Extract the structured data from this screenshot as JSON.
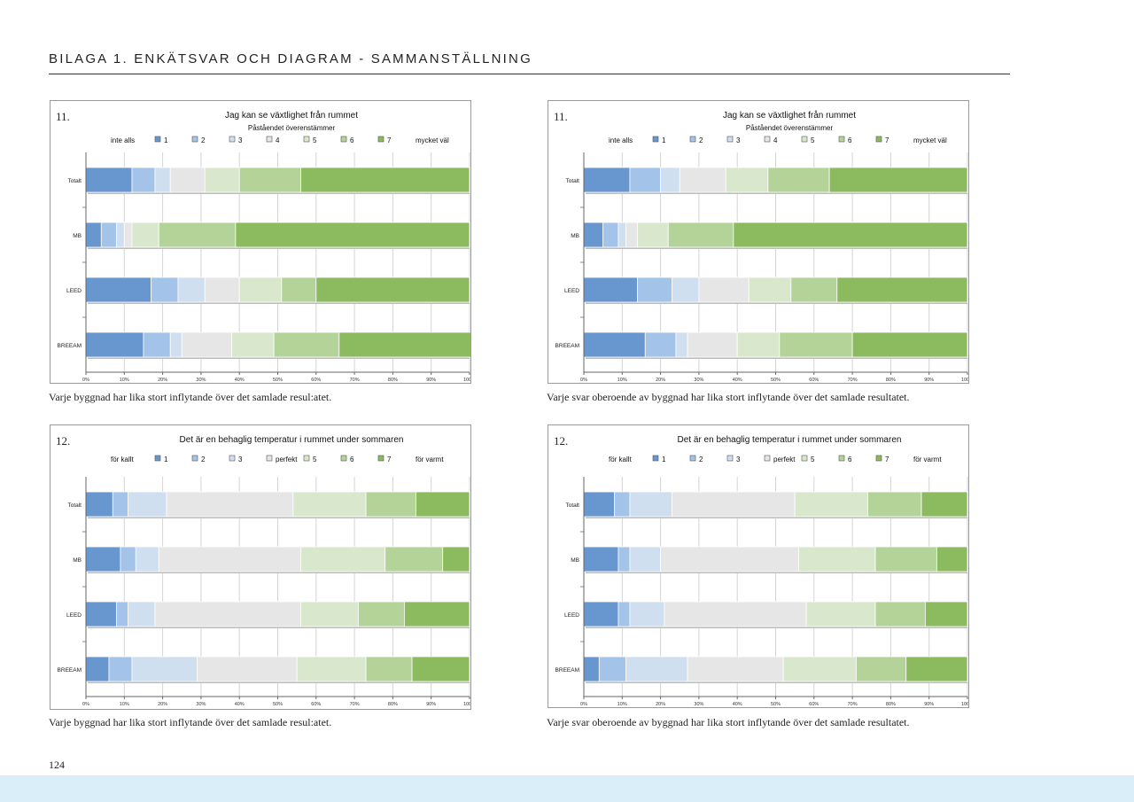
{
  "page": {
    "title": "BILAGA 1. ENKÄTSVAR OCH DIAGRAM - SAMMANSTÄLLNING",
    "page_number": "124"
  },
  "colors": {
    "seg": [
      "#6897d0",
      "#a3c3e9",
      "#cfdff0",
      "#e6e6e6",
      "#d9e8cc",
      "#b3d398",
      "#8cbb5f"
    ]
  },
  "captions": {
    "weighted": "Varje byggnad har lika stort inflytande över det samlade resul:atet.",
    "unweighted": "Varje svar oberoende av byggnad har lika stort inflytande över det samlade resultatet."
  },
  "chart_data": [
    {
      "type": "bar",
      "number": "11.",
      "title": "Jag kan se växtlighet från rummet",
      "subtitle": "Påståendet överenstämmer",
      "legend_left": "inte alls",
      "legend_right": "mycket väl",
      "legend": [
        "1",
        "2",
        "3",
        "4",
        "5",
        "6",
        "7"
      ],
      "categories": [
        "Totalt",
        "MB",
        "LEED",
        "BREEAM"
      ],
      "xlim": [
        0,
        100
      ],
      "x_ticks": [
        "0%",
        "10%",
        "20%",
        "30%",
        "40%",
        "50%",
        "60%",
        "70%",
        "80%",
        "90%",
        "100%"
      ],
      "values": [
        [
          12,
          6,
          4,
          9,
          9,
          16,
          44
        ],
        [
          4,
          4,
          2,
          2,
          7,
          20,
          61
        ],
        [
          17,
          7,
          7,
          9,
          11,
          9,
          40
        ],
        [
          15,
          7,
          3,
          13,
          11,
          17,
          35
        ]
      ]
    },
    {
      "type": "bar",
      "number": "11.",
      "title": "Jag kan se växtlighet från rummet",
      "subtitle": "Påståendet överenstämmer",
      "legend_left": "inte alls",
      "legend_right": "mycket väl",
      "legend": [
        "1",
        "2",
        "3",
        "4",
        "5",
        "6",
        "7"
      ],
      "categories": [
        "Totalt",
        "MB",
        "LEED",
        "BREEAM"
      ],
      "xlim": [
        0,
        100
      ],
      "x_ticks": [
        "0%",
        "10%",
        "20%",
        "30%",
        "40%",
        "50%",
        "60%",
        "70%",
        "80%",
        "90%",
        "100%"
      ],
      "values": [
        [
          12,
          8,
          5,
          12,
          11,
          16,
          36
        ],
        [
          5,
          4,
          2,
          3,
          8,
          17,
          61
        ],
        [
          14,
          9,
          7,
          13,
          11,
          12,
          34
        ],
        [
          16,
          8,
          3,
          13,
          11,
          19,
          30
        ]
      ]
    },
    {
      "type": "bar",
      "number": "12.",
      "title": "Det är en behaglig temperatur i rummet under sommaren",
      "subtitle": "",
      "legend_left": "för kallt",
      "legend_right": "för varmt",
      "legend": [
        "1",
        "2",
        "3",
        "perfekt",
        "5",
        "6",
        "7"
      ],
      "categories": [
        "Totalt",
        "MB",
        "LEED",
        "BREEAM"
      ],
      "xlim": [
        0,
        100
      ],
      "x_ticks": [
        "0%",
        "10%",
        "20%",
        "30%",
        "40%",
        "50%",
        "60%",
        "70%",
        "80%",
        "90%",
        "100%"
      ],
      "values": [
        [
          7,
          4,
          10,
          33,
          19,
          13,
          14
        ],
        [
          9,
          4,
          6,
          37,
          22,
          15,
          7
        ],
        [
          8,
          3,
          7,
          38,
          15,
          12,
          17
        ],
        [
          6,
          6,
          17,
          26,
          18,
          12,
          15
        ]
      ]
    },
    {
      "type": "bar",
      "number": "12.",
      "title": "Det är en behaglig temperatur i rummet under sommaren",
      "subtitle": "",
      "legend_left": "för kallt",
      "legend_right": "för varmt",
      "legend": [
        "1",
        "2",
        "3",
        "perfekt",
        "5",
        "6",
        "7"
      ],
      "categories": [
        "Totalt",
        "MB",
        "LEED",
        "BREEAM"
      ],
      "xlim": [
        0,
        100
      ],
      "x_ticks": [
        "0%",
        "10%",
        "20%",
        "30%",
        "40%",
        "50%",
        "60%",
        "70%",
        "80%",
        "90%",
        "100%"
      ],
      "values": [
        [
          8,
          4,
          11,
          32,
          19,
          14,
          12
        ],
        [
          9,
          3,
          8,
          36,
          20,
          16,
          8
        ],
        [
          9,
          3,
          9,
          37,
          18,
          13,
          11
        ],
        [
          4,
          7,
          16,
          25,
          19,
          13,
          16
        ]
      ]
    }
  ]
}
